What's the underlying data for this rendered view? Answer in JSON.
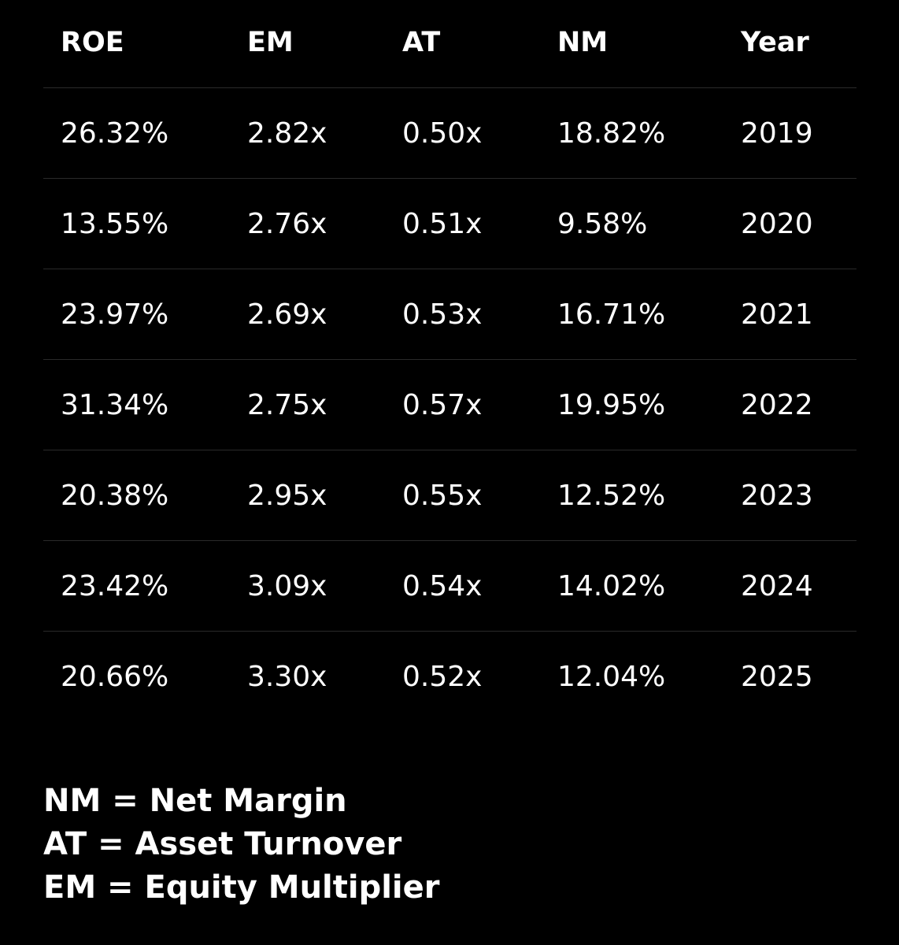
{
  "table": {
    "columns": [
      "ROE",
      "EM",
      "AT",
      "NM",
      "Year"
    ],
    "rows": [
      [
        "26.32%",
        "2.82x",
        "0.50x",
        "18.82%",
        "2019"
      ],
      [
        "13.55%",
        "2.76x",
        "0.51x",
        "9.58%",
        "2020"
      ],
      [
        "23.97%",
        "2.69x",
        "0.53x",
        "16.71%",
        "2021"
      ],
      [
        "31.34%",
        "2.75x",
        "0.57x",
        "19.95%",
        "2022"
      ],
      [
        "20.38%",
        "2.95x",
        "0.55x",
        "12.52%",
        "2023"
      ],
      [
        "23.42%",
        "3.09x",
        "0.54x",
        "14.02%",
        "2024"
      ],
      [
        "20.66%",
        "3.30x",
        "0.52x",
        "12.04%",
        "2025"
      ]
    ]
  },
  "legend": [
    "NM = Net Margin",
    "AT = Asset Turnover",
    "EM = Equity Multiplier"
  ],
  "colors": {
    "background": "#000000",
    "text": "#ffffff",
    "divider": "#2a2a2a"
  }
}
